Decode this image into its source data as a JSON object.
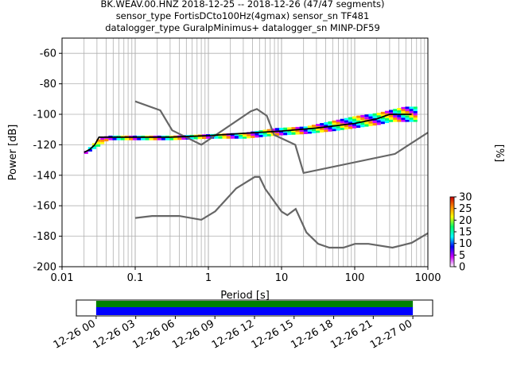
{
  "title": {
    "line1": "BK.WEAV.00.HNZ   2018-12-25 -- 2018-12-26  (47/47 segments)",
    "line2": "sensor_type FortisDCto100Hz(4gmax) sensor_sn TF481",
    "line3": "datalogger_type GuralpMinimus+ datalogger_sn MINP-DF59"
  },
  "colors": {
    "noise_model": "#666666",
    "mode_line": "#000000",
    "colormap": [
      "#ffffff",
      "#cc00ff",
      "#0000ff",
      "#00ffff",
      "#00ff66",
      "#ffff00",
      "#ff8800",
      "#cc0000"
    ],
    "coverage_blue": "#0000ff",
    "coverage_green": "#008000"
  },
  "chart_data": [
    {
      "type": "heatmap",
      "name": "ppsd",
      "xlabel": "Period [s]",
      "ylabel": "Power [dB]",
      "x_scale": "log",
      "xlim": [
        0.01,
        1000
      ],
      "ylim": [
        -200,
        -50
      ],
      "x_ticks": [
        "0.01",
        "0.1",
        "1",
        "10",
        "100",
        "1000"
      ],
      "y_ticks": [
        "-60",
        "-80",
        "-100",
        "-120",
        "-140",
        "-160",
        "-180",
        "-200"
      ],
      "grid": true,
      "colorbar": {
        "label": "[%]",
        "range": [
          0,
          30
        ],
        "ticks": [
          "0",
          "5",
          "10",
          "15",
          "20",
          "25",
          "30"
        ]
      },
      "noise_model_high": {
        "x": [
          0.1,
          0.22,
          0.32,
          0.8,
          3.8,
          4.6,
          6.3,
          7.9,
          15.4,
          20,
          354.8,
          1000
        ],
        "y": [
          -91.5,
          -97.4,
          -110.5,
          -120,
          -98,
          -96.5,
          -101,
          -113.5,
          -120,
          -138.5,
          -126,
          -112
        ]
      },
      "noise_model_low": {
        "x": [
          0.1,
          0.17,
          0.4,
          0.8,
          1.24,
          2.4,
          4.3,
          5,
          6,
          10,
          12,
          15.6,
          21.9,
          31.6,
          45,
          70,
          101,
          154,
          328,
          600,
          1000
        ],
        "y": [
          -168,
          -166.7,
          -166.7,
          -169.2,
          -163.7,
          -148.6,
          -141.1,
          -141.1,
          -149,
          -163.8,
          -166.2,
          -162.1,
          -177.5,
          -185,
          -187.5,
          -187.5,
          -185,
          -185,
          -187.5,
          -184.4,
          -178
        ]
      },
      "mode_curve": {
        "x": [
          0.02,
          0.024,
          0.028,
          0.032,
          0.04,
          0.1,
          0.3,
          1,
          3,
          10,
          30,
          100,
          200,
          300,
          600
        ],
        "y": [
          -125,
          -123,
          -120,
          -115,
          -115,
          -115,
          -115,
          -114,
          -112.5,
          -111,
          -109,
          -106,
          -103,
          -100,
          -100
        ]
      },
      "density_band": {
        "x": [
          0.02,
          0.03,
          0.04,
          0.1,
          0.3,
          1,
          3,
          8,
          20,
          50,
          100,
          200,
          300,
          450,
          650
        ],
        "lower": [
          -126,
          -121,
          -117,
          -117,
          -117,
          -116,
          -116,
          -114,
          -113,
          -111,
          -109,
          -107,
          -105,
          -105,
          -105
        ],
        "upper": [
          -124,
          -116,
          -114,
          -114,
          -114,
          -113,
          -112,
          -109,
          -108,
          -104,
          -101,
          -99,
          -97,
          -95,
          -95
        ]
      }
    },
    {
      "type": "bar",
      "name": "data coverage",
      "x_ticks": [
        "12-26 00",
        "12-26 03",
        "12-26 06",
        "12-26 09",
        "12-26 12",
        "12-26 15",
        "12-26 18",
        "12-26 21",
        "12-27 00"
      ],
      "xlim_hours": [
        -1.5,
        25.5
      ],
      "coverage_hours": [
        0,
        24
      ]
    }
  ]
}
